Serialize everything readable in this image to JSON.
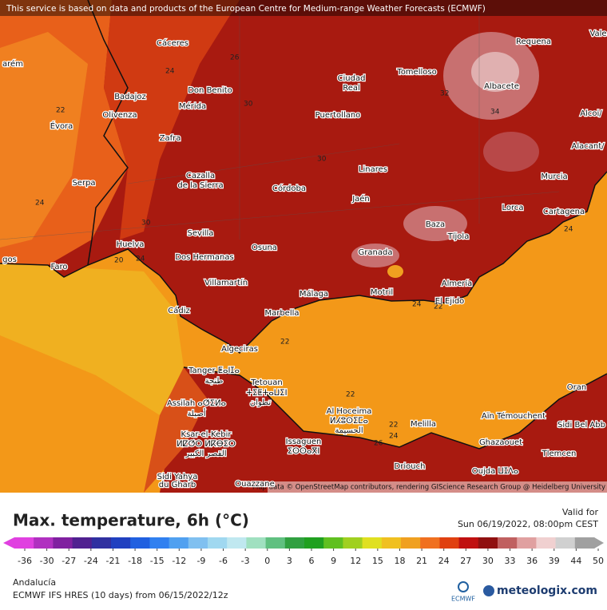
{
  "notice": "This service is based on data and products of the European Centre for Medium-range Weather Forecasts (ECMWF)",
  "attribution": "Map data © OpenStreetMap contributors, rendering GIScience Research Group @ Heidelberg University",
  "cities": [
    "Cáceres",
    "Tomelloso",
    "Requena",
    "Vale",
    "Ciudad",
    "Real",
    "Albacete",
    "Don Benito",
    "Badajoz",
    "Mérida",
    "Olivenza",
    "Évora",
    "Puertollano",
    "Alcoi/",
    "Zafra",
    "Alacant/",
    "arém",
    "Linares",
    "Cazalla",
    "de la Sierra",
    "Serpa",
    "Córdoba",
    "Murcia",
    "Jaén",
    "Lorca",
    "Cartagena",
    "Baza",
    "Sevilla",
    "Tíjola",
    "Huelva",
    "Osuna",
    "Granada",
    "Dos Hermanas",
    "Faro",
    "gos",
    "Villamartín",
    "Almería",
    "Málaga",
    "Motril",
    "El Ejido",
    "Marbella",
    "Cádiz",
    "Algeciras",
    "Tanger ⵟⴰⵏⵊⴰ",
    "طنجة",
    "Tetouan",
    "ⵜⵉⵟⵜⴰⵡⵉⵏ",
    "تطوان",
    "Assilah ⴰⵚⵉⵍⴰ",
    "أصيلة",
    "Al Hoceima",
    "ⵍⵃⵓⵙⵉⵎⴰ",
    "الحسيمة",
    "Melilla",
    "Ksar-el-Kebir",
    "ⵍⵇⵚⵔ ⵍⴽⴱⵉⵔ",
    "القصر الكبير",
    "Issaguen",
    "ⵉⵙⵙⴰⴳⵏ",
    "Aïn Témouchent",
    "Oran",
    "Sidi Bel Abb",
    "Ghazaouet",
    "Tlemcen",
    "Driouch",
    "Oujda ⵡⵊⴷⴰ",
    "Sidi Yahya",
    "du Gharb",
    "Ouazzane"
  ],
  "contour_labels": [
    26,
    24,
    22,
    24,
    30,
    30,
    32,
    34,
    30,
    20,
    24,
    24,
    22,
    22,
    22,
    24,
    26,
    24,
    22
  ],
  "title": "Max. temperature, 6h (°C)",
  "valid_label": "Valid for",
  "valid_time": "Sun 06/19/2022, 08:00pm CEST",
  "colorbar": {
    "ticks": [
      -36,
      -30,
      -27,
      -24,
      -21,
      -18,
      -15,
      -12,
      -9,
      -6,
      -3,
      0,
      3,
      6,
      9,
      12,
      15,
      18,
      21,
      24,
      27,
      30,
      33,
      36,
      39,
      44,
      50
    ],
    "colors": [
      "#e040e0",
      "#b030c0",
      "#8020a0",
      "#502090",
      "#3030a0",
      "#2040c0",
      "#2060e0",
      "#3080f0",
      "#50a0f0",
      "#80c0f0",
      "#a0d8f0",
      "#c0e8f0",
      "#a0e0c0",
      "#60c080",
      "#30a040",
      "#20a020",
      "#60c020",
      "#a0d020",
      "#e0e020",
      "#f0c020",
      "#f0a020",
      "#f07020",
      "#e04010",
      "#c01010",
      "#901010",
      "#c06060",
      "#e0a0a0",
      "#f0d0d0",
      "#d0d0d0",
      "#a0a0a0"
    ]
  },
  "region": "Andalucía",
  "model": "ECMWF IFS HRES (10 days) from 06/15/2022/12z",
  "logo_small": "ECMWF",
  "logo": "meteologix.com"
}
